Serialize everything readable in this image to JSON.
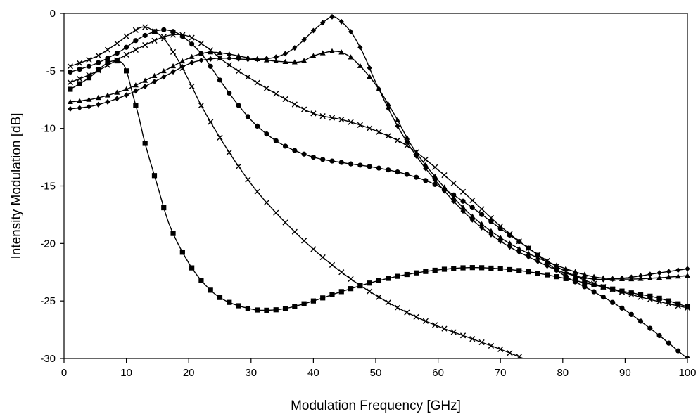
{
  "chart_data": {
    "type": "line",
    "xlabel": "Modulation Frequency [GHz]",
    "ylabel": "Intensity Modulation [dB]",
    "xlim": [
      0,
      100
    ],
    "ylim": [
      -30,
      0
    ],
    "xticks": [
      0,
      10,
      20,
      30,
      40,
      50,
      60,
      70,
      80,
      90,
      100
    ],
    "yticks": [
      0,
      -5,
      -10,
      -15,
      -20,
      -25,
      -30
    ],
    "grid": false,
    "legend": "none",
    "series": [
      {
        "marker": "square",
        "points": [
          [
            1,
            -6.6
          ],
          [
            4,
            -5.6
          ],
          [
            7,
            -4.3
          ],
          [
            9,
            -4.2
          ],
          [
            10,
            -5.0
          ],
          [
            11,
            -7.0
          ],
          [
            12,
            -9.0
          ],
          [
            13,
            -11.3
          ],
          [
            15,
            -15.0
          ],
          [
            17,
            -18.5
          ],
          [
            20,
            -21.7
          ],
          [
            23,
            -23.8
          ],
          [
            26,
            -25.0
          ],
          [
            30,
            -25.7
          ],
          [
            33,
            -25.8
          ],
          [
            36,
            -25.6
          ],
          [
            40,
            -25.0
          ],
          [
            45,
            -24.1
          ],
          [
            50,
            -23.3
          ],
          [
            55,
            -22.7
          ],
          [
            60,
            -22.3
          ],
          [
            65,
            -22.1
          ],
          [
            70,
            -22.2
          ],
          [
            75,
            -22.5
          ],
          [
            80,
            -23.0
          ],
          [
            85,
            -23.6
          ],
          [
            90,
            -24.2
          ],
          [
            95,
            -24.7
          ],
          [
            100,
            -25.5
          ]
        ]
      },
      {
        "marker": "x",
        "points": [
          [
            1,
            -4.6
          ],
          [
            5,
            -3.8
          ],
          [
            8,
            -2.8
          ],
          [
            10,
            -2.0
          ],
          [
            12,
            -1.3
          ],
          [
            13,
            -1.2
          ],
          [
            14,
            -1.4
          ],
          [
            16,
            -2.2
          ],
          [
            18,
            -3.8
          ],
          [
            20,
            -5.8
          ],
          [
            22,
            -8.0
          ],
          [
            25,
            -10.8
          ],
          [
            28,
            -13.3
          ],
          [
            31,
            -15.5
          ],
          [
            35,
            -17.9
          ],
          [
            40,
            -20.5
          ],
          [
            45,
            -22.7
          ],
          [
            50,
            -24.5
          ],
          [
            55,
            -26.0
          ],
          [
            60,
            -27.2
          ],
          [
            65,
            -28.2
          ],
          [
            70,
            -29.2
          ],
          [
            75,
            -30.3
          ]
        ]
      },
      {
        "marker": "circle",
        "points": [
          [
            1,
            -5.1
          ],
          [
            5,
            -4.4
          ],
          [
            9,
            -3.3
          ],
          [
            12,
            -2.2
          ],
          [
            15,
            -1.5
          ],
          [
            17,
            -1.5
          ],
          [
            19,
            -2.0
          ],
          [
            22,
            -3.5
          ],
          [
            25,
            -5.8
          ],
          [
            28,
            -8.0
          ],
          [
            31,
            -9.8
          ],
          [
            35,
            -11.4
          ],
          [
            40,
            -12.5
          ],
          [
            45,
            -13.0
          ],
          [
            50,
            -13.4
          ],
          [
            55,
            -14.0
          ],
          [
            60,
            -15.0
          ],
          [
            65,
            -16.7
          ],
          [
            70,
            -18.7
          ],
          [
            75,
            -20.6
          ],
          [
            80,
            -22.7
          ],
          [
            85,
            -24.2
          ],
          [
            90,
            -25.8
          ],
          [
            95,
            -27.8
          ],
          [
            100,
            -30.0
          ]
        ]
      },
      {
        "marker": "x",
        "points": [
          [
            1,
            -6.0
          ],
          [
            5,
            -5.1
          ],
          [
            10,
            -3.6
          ],
          [
            14,
            -2.5
          ],
          [
            17,
            -1.9
          ],
          [
            20,
            -2.0
          ],
          [
            23,
            -3.0
          ],
          [
            26,
            -4.3
          ],
          [
            30,
            -5.7
          ],
          [
            35,
            -7.3
          ],
          [
            40,
            -8.7
          ],
          [
            45,
            -9.3
          ],
          [
            50,
            -10.2
          ],
          [
            55,
            -11.5
          ],
          [
            60,
            -13.6
          ],
          [
            65,
            -16.0
          ],
          [
            70,
            -18.5
          ],
          [
            75,
            -20.6
          ],
          [
            80,
            -22.3
          ],
          [
            85,
            -23.5
          ],
          [
            90,
            -24.3
          ],
          [
            95,
            -25.0
          ],
          [
            100,
            -25.6
          ]
        ]
      },
      {
        "marker": "triangle",
        "points": [
          [
            1,
            -7.7
          ],
          [
            5,
            -7.4
          ],
          [
            10,
            -6.6
          ],
          [
            15,
            -5.3
          ],
          [
            20,
            -3.9
          ],
          [
            23,
            -3.4
          ],
          [
            26,
            -3.5
          ],
          [
            30,
            -3.9
          ],
          [
            35,
            -4.2
          ],
          [
            38,
            -4.2
          ],
          [
            40,
            -3.7
          ],
          [
            43,
            -3.3
          ],
          [
            45,
            -3.5
          ],
          [
            47,
            -4.3
          ],
          [
            50,
            -6.2
          ],
          [
            53,
            -8.8
          ],
          [
            56,
            -11.7
          ],
          [
            60,
            -14.5
          ],
          [
            65,
            -17.4
          ],
          [
            70,
            -19.5
          ],
          [
            75,
            -21.0
          ],
          [
            80,
            -22.1
          ],
          [
            85,
            -22.9
          ],
          [
            90,
            -23.1
          ],
          [
            95,
            -23.0
          ],
          [
            100,
            -22.8
          ]
        ]
      },
      {
        "marker": "diamond",
        "points": [
          [
            1,
            -8.3
          ],
          [
            5,
            -8.0
          ],
          [
            10,
            -7.1
          ],
          [
            15,
            -5.8
          ],
          [
            20,
            -4.4
          ],
          [
            23,
            -4.0
          ],
          [
            26,
            -3.9
          ],
          [
            30,
            -4.0
          ],
          [
            34,
            -3.8
          ],
          [
            37,
            -3.0
          ],
          [
            40,
            -1.5
          ],
          [
            42,
            -0.6
          ],
          [
            43,
            -0.3
          ],
          [
            44,
            -0.5
          ],
          [
            46,
            -1.6
          ],
          [
            48,
            -3.5
          ],
          [
            50,
            -6.0
          ],
          [
            53,
            -9.3
          ],
          [
            56,
            -12.0
          ],
          [
            60,
            -14.8
          ],
          [
            65,
            -17.7
          ],
          [
            70,
            -19.8
          ],
          [
            75,
            -21.3
          ],
          [
            80,
            -22.5
          ],
          [
            85,
            -23.1
          ],
          [
            90,
            -23.0
          ],
          [
            95,
            -22.6
          ],
          [
            100,
            -22.2
          ]
        ]
      }
    ]
  }
}
